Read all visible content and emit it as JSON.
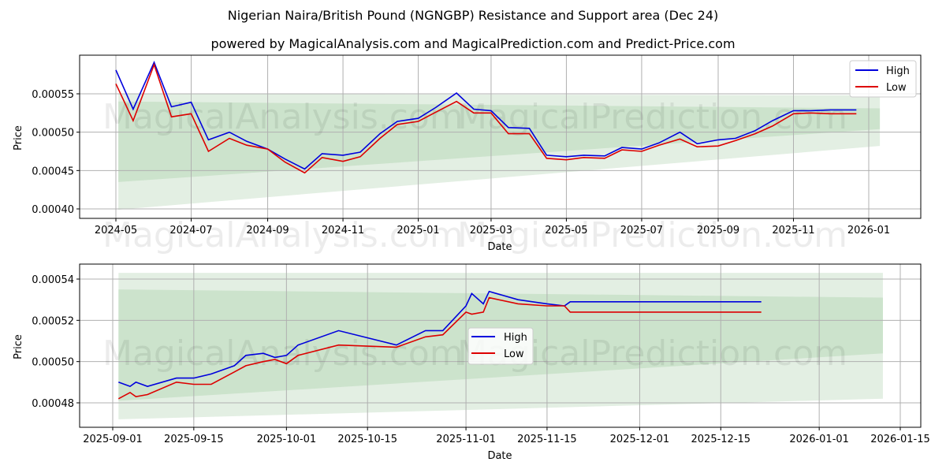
{
  "title": "Nigerian Naira/British Pound (NGNGBP) Resistance and Support area (Dec 24)",
  "subtitle": "powered by MagicalAnalysis.com and MagicalPrediction.com and Predict-Price.com",
  "watermarks": [
    "MagicalAnalysis.com",
    "MagicalPrediction.com"
  ],
  "colors": {
    "high": "#0000dd",
    "low": "#dd0000",
    "band_outer": "#e3efe3",
    "band_inner": "#cce3cc",
    "grid": "#b0b0b0"
  },
  "legend": {
    "high": "High",
    "low": "Low"
  },
  "chart_data": [
    {
      "type": "line",
      "title": "Nigerian Naira/British Pound (NGNGBP) Resistance and Support area (Dec 24)",
      "xlabel": "Date",
      "ylabel": "Price",
      "ylim": [
        0.00039,
        0.0006
      ],
      "xticks": [
        "2024-05",
        "2024-07",
        "2024-09",
        "2024-11",
        "2025-01",
        "2025-03",
        "2025-05",
        "2025-07",
        "2025-09",
        "2025-11",
        "2026-01"
      ],
      "yticks": [
        "0.00040",
        "0.00045",
        "0.00050",
        "0.00055"
      ],
      "legend_position": "upper right",
      "grid": true,
      "x": [
        "2024-05-01",
        "2024-05-15",
        "2024-06-01",
        "2024-06-15",
        "2024-07-01",
        "2024-07-15",
        "2024-08-01",
        "2024-08-15",
        "2024-09-01",
        "2024-09-15",
        "2024-10-01",
        "2024-10-15",
        "2024-11-01",
        "2024-11-15",
        "2024-12-01",
        "2024-12-15",
        "2025-01-01",
        "2025-01-15",
        "2025-02-01",
        "2025-02-15",
        "2025-03-01",
        "2025-03-15",
        "2025-04-01",
        "2025-04-15",
        "2025-05-01",
        "2025-05-15",
        "2025-06-01",
        "2025-06-15",
        "2025-07-01",
        "2025-07-15",
        "2025-08-01",
        "2025-08-15",
        "2025-09-01",
        "2025-09-15",
        "2025-10-01",
        "2025-10-15",
        "2025-11-01",
        "2025-11-15",
        "2025-12-01",
        "2025-12-22"
      ],
      "series": [
        {
          "name": "High",
          "values": [
            0.000581,
            0.00053,
            0.000591,
            0.000533,
            0.000539,
            0.00049,
            0.0005,
            0.000488,
            0.000478,
            0.000465,
            0.000452,
            0.000472,
            0.00047,
            0.000474,
            0.000498,
            0.000514,
            0.000518,
            0.000532,
            0.000551,
            0.00053,
            0.000528,
            0.000506,
            0.000505,
            0.00047,
            0.000468,
            0.00047,
            0.000469,
            0.00048,
            0.000478,
            0.000486,
            0.0005,
            0.000485,
            0.00049,
            0.000492,
            0.000502,
            0.000515,
            0.000528,
            0.000528,
            0.000529,
            0.000529
          ]
        },
        {
          "name": "Low",
          "values": [
            0.000563,
            0.000515,
            0.000588,
            0.00052,
            0.000524,
            0.000475,
            0.000492,
            0.000483,
            0.000478,
            0.000461,
            0.000447,
            0.000467,
            0.000462,
            0.000468,
            0.000492,
            0.00051,
            0.000514,
            0.000526,
            0.00054,
            0.000525,
            0.000525,
            0.000498,
            0.000498,
            0.000466,
            0.000464,
            0.000467,
            0.000466,
            0.000477,
            0.000475,
            0.000483,
            0.000491,
            0.000481,
            0.000482,
            0.000489,
            0.000498,
            0.000508,
            0.000524,
            0.000525,
            0.000524,
            0.000524
          ]
        }
      ],
      "bands": {
        "outer": {
          "x_start": "2024-05-03",
          "x_end": "2026-01-10",
          "upper_start": 0.00055,
          "upper_end": 0.000548,
          "lower_start": 0.000399,
          "lower_end": 0.000482
        },
        "inner": {
          "x_start": "2024-05-03",
          "x_end": "2026-01-10",
          "upper_start": 0.00054,
          "upper_end": 0.000531,
          "lower_start": 0.000435,
          "lower_end": 0.000504
        }
      }
    },
    {
      "type": "line",
      "xlabel": "Date",
      "ylabel": "Price",
      "ylim": [
        0.000467,
        0.000547
      ],
      "xticks": [
        "2025-09-01",
        "2025-09-15",
        "2025-10-01",
        "2025-10-15",
        "2025-11-01",
        "2025-11-15",
        "2025-12-01",
        "2025-12-15",
        "2026-01-01",
        "2026-01-15"
      ],
      "yticks": [
        "0.00048",
        "0.00050",
        "0.00052",
        "0.00054"
      ],
      "legend_position": "center",
      "grid": true,
      "x": [
        "2025-09-02",
        "2025-09-04",
        "2025-09-05",
        "2025-09-07",
        "2025-09-12",
        "2025-09-15",
        "2025-09-18",
        "2025-09-22",
        "2025-09-24",
        "2025-09-27",
        "2025-09-29",
        "2025-10-01",
        "2025-10-03",
        "2025-10-10",
        "2025-10-20",
        "2025-10-25",
        "2025-10-28",
        "2025-11-01",
        "2025-11-02",
        "2025-11-04",
        "2025-11-05",
        "2025-11-10",
        "2025-11-15",
        "2025-11-18",
        "2025-11-19",
        "2025-12-22"
      ],
      "series": [
        {
          "name": "High",
          "values": [
            0.00049,
            0.000488,
            0.00049,
            0.000488,
            0.000492,
            0.000492,
            0.000494,
            0.000498,
            0.000503,
            0.000504,
            0.000502,
            0.000503,
            0.000508,
            0.000515,
            0.000508,
            0.000515,
            0.000515,
            0.000527,
            0.000533,
            0.000528,
            0.000534,
            0.00053,
            0.000528,
            0.000527,
            0.000529,
            0.000529
          ]
        },
        {
          "name": "Low",
          "values": [
            0.000482,
            0.000485,
            0.000483,
            0.000484,
            0.00049,
            0.000489,
            0.000489,
            0.000495,
            0.000498,
            0.0005,
            0.000501,
            0.000499,
            0.000503,
            0.000508,
            0.000507,
            0.000512,
            0.000513,
            0.000524,
            0.000523,
            0.000524,
            0.000531,
            0.000528,
            0.000527,
            0.000527,
            0.000524,
            0.000524
          ]
        }
      ],
      "bands": {
        "outer": {
          "x_start": "2025-09-02",
          "x_end": "2026-01-12",
          "upper_start": 0.000543,
          "upper_end": 0.000543,
          "lower_start": 0.000472,
          "lower_end": 0.000482
        },
        "inner": {
          "x_start": "2025-09-02",
          "x_end": "2026-01-12",
          "upper_start": 0.000535,
          "upper_end": 0.000531,
          "lower_start": 0.000481,
          "lower_end": 0.000504
        }
      }
    }
  ]
}
